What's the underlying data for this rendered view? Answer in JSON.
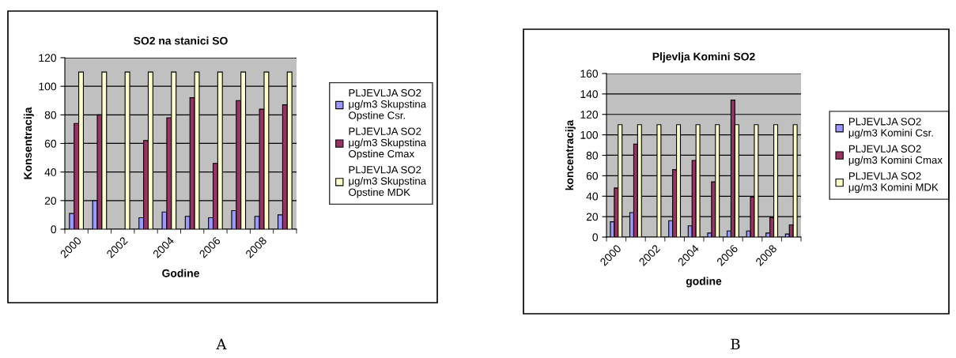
{
  "chart_data": [
    {
      "type": "bar",
      "title": "SO2 na stanici SO",
      "xlabel": "Godine",
      "ylabel": "Konsentracija",
      "categories": [
        "2000",
        null,
        "2002",
        null,
        "2004",
        null,
        "2006",
        null,
        "2008",
        null
      ],
      "series": [
        {
          "name": "PLJEVLJA SO2 μg/m3 Skupstina Opstine Csr.",
          "color": "#9999ff",
          "values": [
            11,
            20,
            null,
            8,
            12,
            9,
            8,
            13,
            9,
            10
          ]
        },
        {
          "name": "PLJEVLJA SO2 μg/m3 Skupstina Opstine Cmax",
          "color": "#993366",
          "values": [
            74,
            80,
            null,
            62,
            78,
            92,
            46,
            90,
            84,
            87
          ]
        },
        {
          "name": "PLJEVLJA SO2 μg/m3 Skupstina Opstine MDK",
          "color": "#ffffcc",
          "values": [
            110,
            110,
            110,
            110,
            110,
            110,
            110,
            110,
            110,
            110
          ]
        }
      ],
      "ylim": [
        0,
        120
      ],
      "yticks": [
        0,
        20,
        40,
        60,
        80,
        100,
        120
      ],
      "grid": "y",
      "legend": "right",
      "annotations": [
        "A"
      ]
    },
    {
      "type": "bar",
      "title": "Pljevlja Komini SO2",
      "xlabel": "godine",
      "ylabel": "koncentracija",
      "categories": [
        "2000",
        null,
        "2002",
        null,
        "2004",
        null,
        "2006",
        null,
        "2008",
        null
      ],
      "series": [
        {
          "name": "PLJEVLJA SO2 μg/m3 Komini Csr.",
          "color": "#9999ff",
          "values": [
            15,
            24,
            null,
            16,
            11,
            4,
            6,
            6,
            4,
            3
          ]
        },
        {
          "name": "PLJEVLJA SO2 μg/m3 Komini Cmax",
          "color": "#993366",
          "values": [
            48,
            91,
            null,
            66,
            75,
            54,
            134,
            39,
            19,
            12
          ]
        },
        {
          "name": "PLJEVLJA SO2 μg/m3 Komini MDK",
          "color": "#ffffcc",
          "values": [
            110,
            110,
            110,
            110,
            110,
            110,
            110,
            110,
            110,
            110
          ]
        }
      ],
      "ylim": [
        0,
        160
      ],
      "yticks": [
        0,
        20,
        40,
        60,
        80,
        100,
        120,
        140,
        160
      ],
      "grid": "y",
      "legend": "right",
      "annotations": [
        "B"
      ]
    }
  ]
}
